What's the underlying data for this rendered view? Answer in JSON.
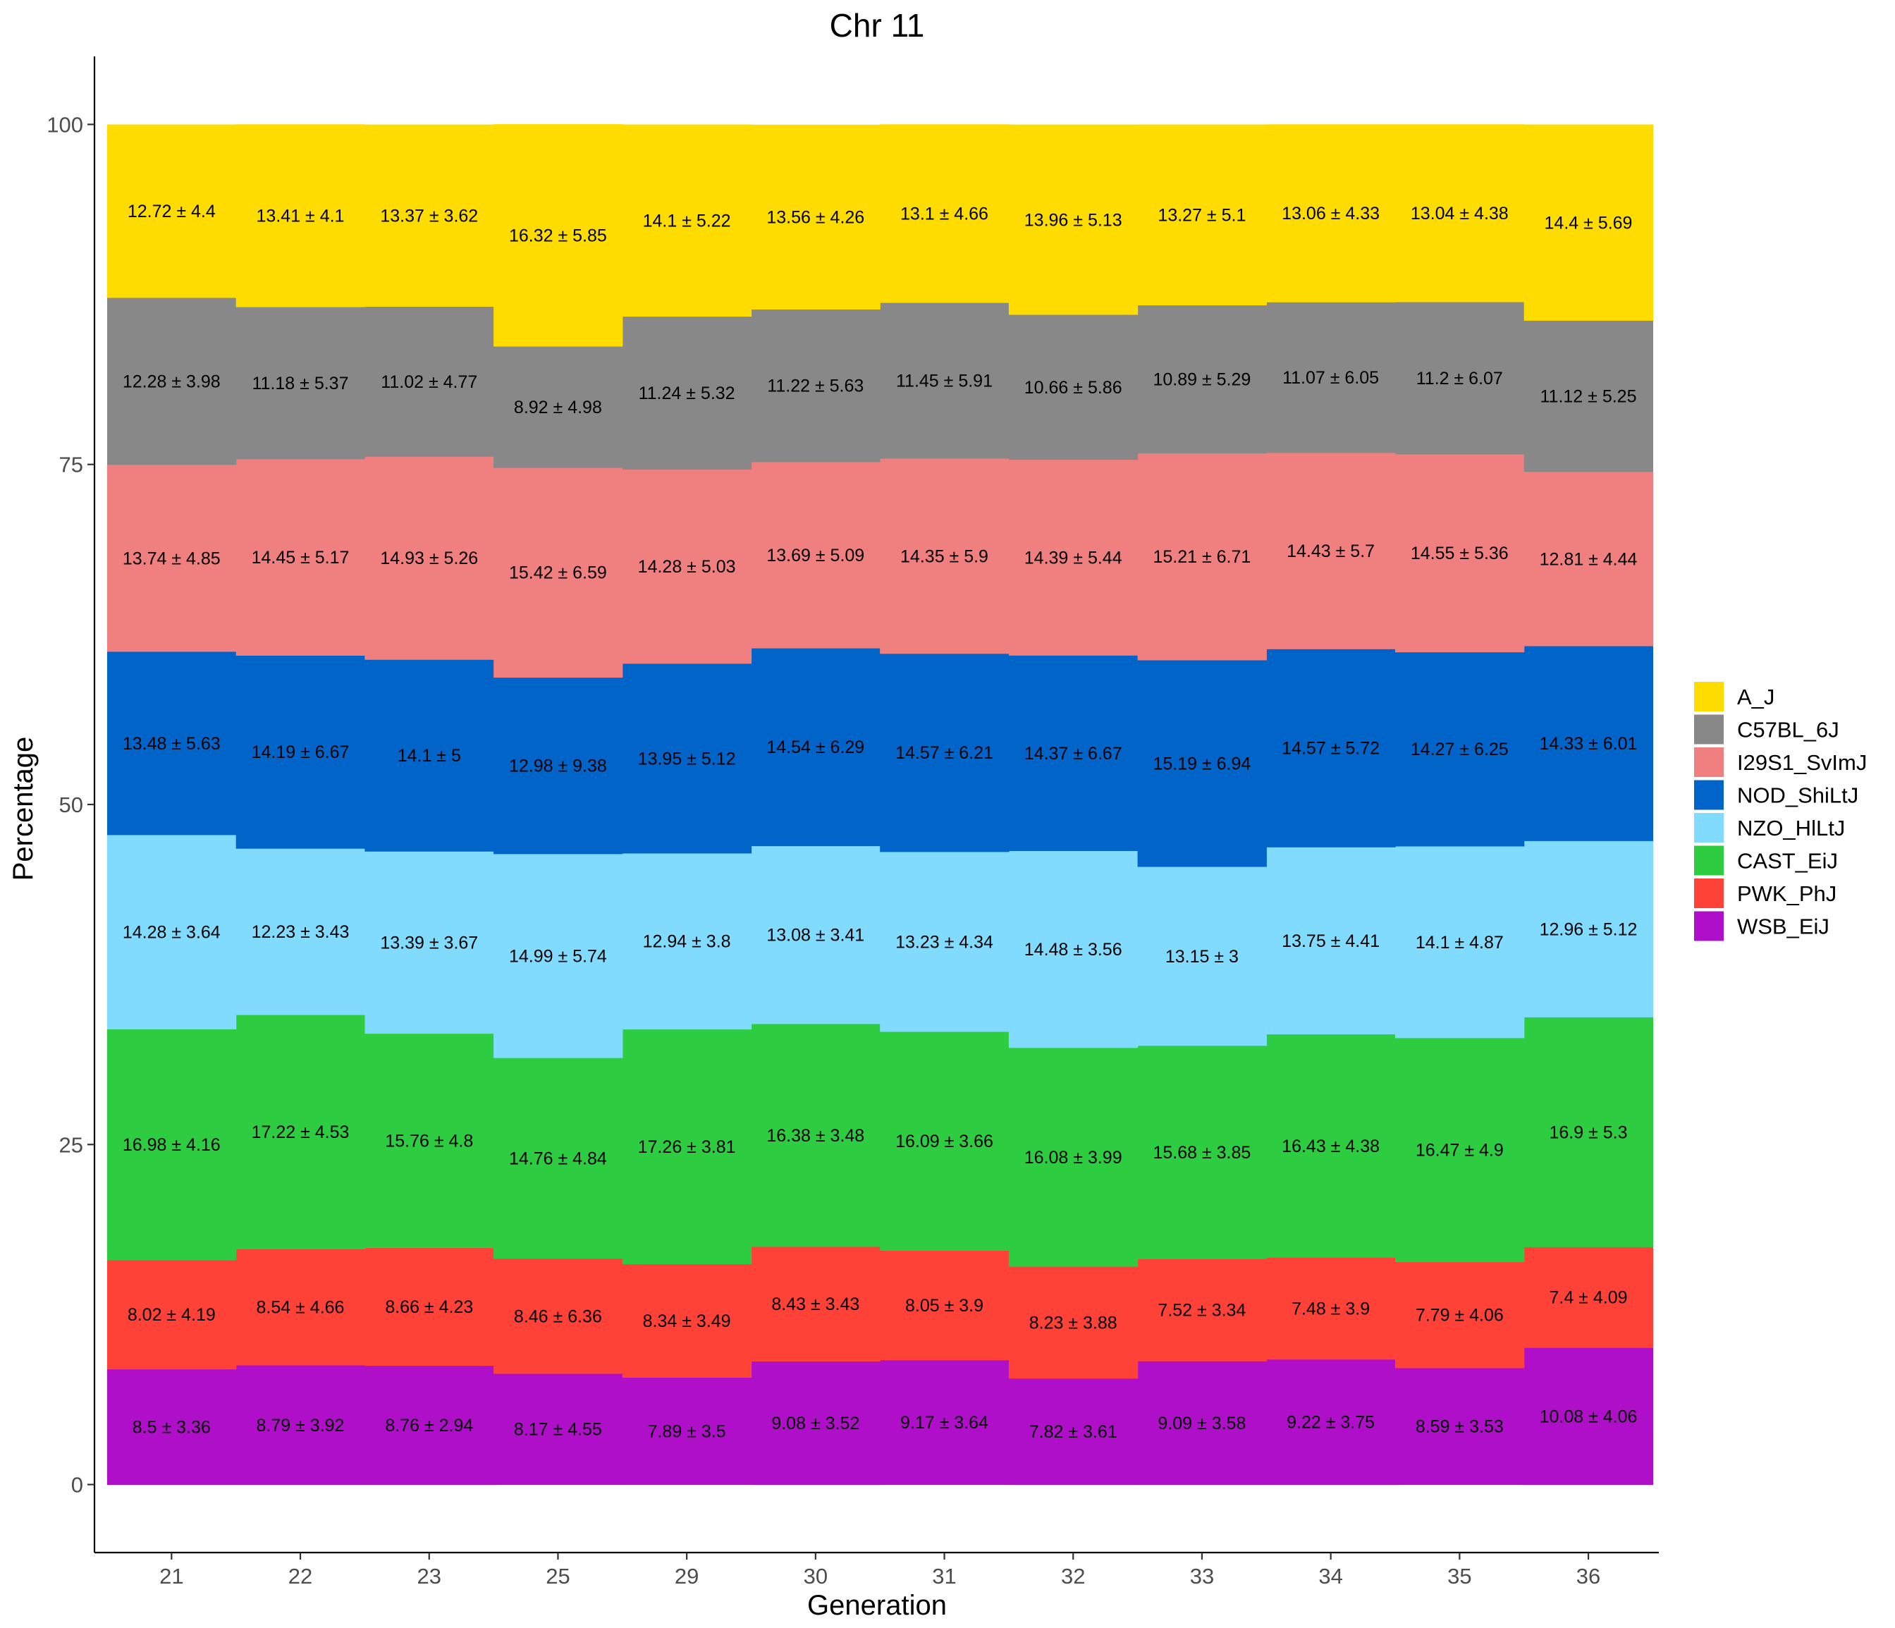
{
  "chart_data": {
    "type": "bar",
    "stacked": true,
    "title": "Chr 11",
    "xlabel": "Generation",
    "ylabel": "Percentage",
    "ylim": [
      -5,
      105
    ],
    "yticks": [
      0,
      25,
      50,
      75,
      100
    ],
    "grid": false,
    "legend_position": "right",
    "categories": [
      "21",
      "22",
      "23",
      "25",
      "29",
      "30",
      "31",
      "32",
      "33",
      "34",
      "35",
      "36"
    ],
    "series": [
      {
        "name": "WSB_EiJ",
        "color": "#AF0FC8",
        "values": [
          8.5,
          8.79,
          8.76,
          8.17,
          7.89,
          9.08,
          9.17,
          7.82,
          9.09,
          9.22,
          8.59,
          10.08
        ],
        "labels": [
          "8.5 ± 3.36",
          "8.79 ± 3.92",
          "8.76 ± 2.94",
          "8.17 ± 4.55",
          "7.89 ± 3.5",
          "9.08 ± 3.52",
          "9.17 ± 3.64",
          "7.82 ± 3.61",
          "9.09 ± 3.58",
          "9.22 ± 3.75",
          "8.59 ± 3.53",
          "10.08 ± 4.06"
        ]
      },
      {
        "name": "PWK_PhJ",
        "color": "#FF4238",
        "values": [
          8.02,
          8.54,
          8.66,
          8.46,
          8.34,
          8.43,
          8.05,
          8.23,
          7.52,
          7.48,
          7.79,
          7.4
        ],
        "labels": [
          "8.02 ± 4.19",
          "8.54 ± 4.66",
          "8.66 ± 4.23",
          "8.46 ± 6.36",
          "8.34 ± 3.49",
          "8.43 ± 3.43",
          "8.05 ± 3.9",
          "8.23 ± 3.88",
          "7.52 ± 3.34",
          "7.48 ± 3.9",
          "7.79 ± 4.06",
          "7.4 ± 4.09"
        ]
      },
      {
        "name": "CAST_EiJ",
        "color": "#2ECC40",
        "values": [
          16.98,
          17.22,
          15.76,
          14.76,
          17.26,
          16.38,
          16.09,
          16.08,
          15.68,
          16.43,
          16.47,
          16.9
        ],
        "labels": [
          "16.98 ± 4.16",
          "17.22 ± 4.53",
          "15.76 ± 4.8",
          "14.76 ± 4.84",
          "17.26 ± 3.81",
          "16.38 ± 3.48",
          "16.09 ± 3.66",
          "16.08 ± 3.99",
          "15.68 ± 3.85",
          "16.43 ± 4.38",
          "16.47 ± 4.9",
          "16.9 ± 5.3"
        ]
      },
      {
        "name": "NZO_HlLtJ",
        "color": "#80DBFF",
        "values": [
          14.28,
          12.23,
          13.39,
          14.99,
          12.94,
          13.08,
          13.23,
          14.48,
          13.15,
          13.75,
          14.1,
          12.96
        ],
        "labels": [
          "14.28 ± 3.64",
          "12.23 ± 3.43",
          "13.39 ± 3.67",
          "14.99 ± 5.74",
          "12.94 ± 3.8",
          "13.08 ± 3.41",
          "13.23 ± 4.34",
          "14.48 ± 3.56",
          "13.15 ± 3",
          "13.75 ± 4.41",
          "14.1 ± 4.87",
          "12.96 ± 5.12"
        ]
      },
      {
        "name": "NOD_ShiLtJ",
        "color": "#0064C9",
        "values": [
          13.48,
          14.19,
          14.1,
          12.98,
          13.95,
          14.54,
          14.57,
          14.37,
          15.19,
          14.57,
          14.27,
          14.33
        ],
        "labels": [
          "13.48 ± 5.63",
          "14.19 ± 6.67",
          "14.1 ± 5",
          "12.98 ± 9.38",
          "13.95 ± 5.12",
          "14.54 ± 6.29",
          "14.57 ± 6.21",
          "14.37 ± 6.67",
          "15.19 ± 6.94",
          "14.57 ± 5.72",
          "14.27 ± 6.25",
          "14.33 ± 6.01"
        ]
      },
      {
        "name": "I29S1_SvImJ",
        "color": "#F08080",
        "values": [
          13.74,
          14.45,
          14.93,
          15.42,
          14.28,
          13.69,
          14.35,
          14.39,
          15.21,
          14.43,
          14.55,
          12.81
        ],
        "labels": [
          "13.74 ± 4.85",
          "14.45 ± 5.17",
          "14.93 ± 5.26",
          "15.42 ± 6.59",
          "14.28 ± 5.03",
          "13.69 ± 5.09",
          "14.35 ± 5.9",
          "14.39 ± 5.44",
          "15.21 ± 6.71",
          "14.43 ± 5.7",
          "14.55 ± 5.36",
          "12.81 ± 4.44"
        ]
      },
      {
        "name": "C57BL_6J",
        "color": "#888888",
        "values": [
          12.28,
          11.18,
          11.02,
          8.92,
          11.24,
          11.22,
          11.45,
          10.66,
          10.89,
          11.07,
          11.2,
          11.12
        ],
        "labels": [
          "12.28 ± 3.98",
          "11.18 ± 5.37",
          "11.02 ± 4.77",
          "8.92 ± 4.98",
          "11.24 ± 5.32",
          "11.22 ± 5.63",
          "11.45 ± 5.91",
          "10.66 ± 5.86",
          "10.89 ± 5.29",
          "11.07 ± 6.05",
          "11.2 ± 6.07",
          "11.12 ± 5.25"
        ]
      },
      {
        "name": "A_J",
        "color": "#FFDC00",
        "values": [
          12.72,
          13.41,
          13.37,
          16.32,
          14.1,
          13.56,
          13.1,
          13.96,
          13.27,
          13.06,
          13.04,
          14.4
        ],
        "labels": [
          "12.72 ± 4.4",
          "13.41 ± 4.1",
          "13.37 ± 3.62",
          "16.32 ± 5.85",
          "14.1 ± 5.22",
          "13.56 ± 4.26",
          "13.1 ± 4.66",
          "13.96 ± 5.13",
          "13.27 ± 5.1",
          "13.06 ± 4.33",
          "13.04 ± 4.38",
          "14.4 ± 5.69"
        ]
      }
    ],
    "legend": [
      {
        "name": "A_J",
        "color": "#FFDC00"
      },
      {
        "name": "C57BL_6J",
        "color": "#888888"
      },
      {
        "name": "I29S1_SvImJ",
        "color": "#F08080"
      },
      {
        "name": "NOD_ShiLtJ",
        "color": "#0064C9"
      },
      {
        "name": "NZO_HlLtJ",
        "color": "#80DBFF"
      },
      {
        "name": "CAST_EiJ",
        "color": "#2ECC40"
      },
      {
        "name": "PWK_PhJ",
        "color": "#FF4238"
      },
      {
        "name": "WSB_EiJ",
        "color": "#AF0FC8"
      }
    ]
  }
}
